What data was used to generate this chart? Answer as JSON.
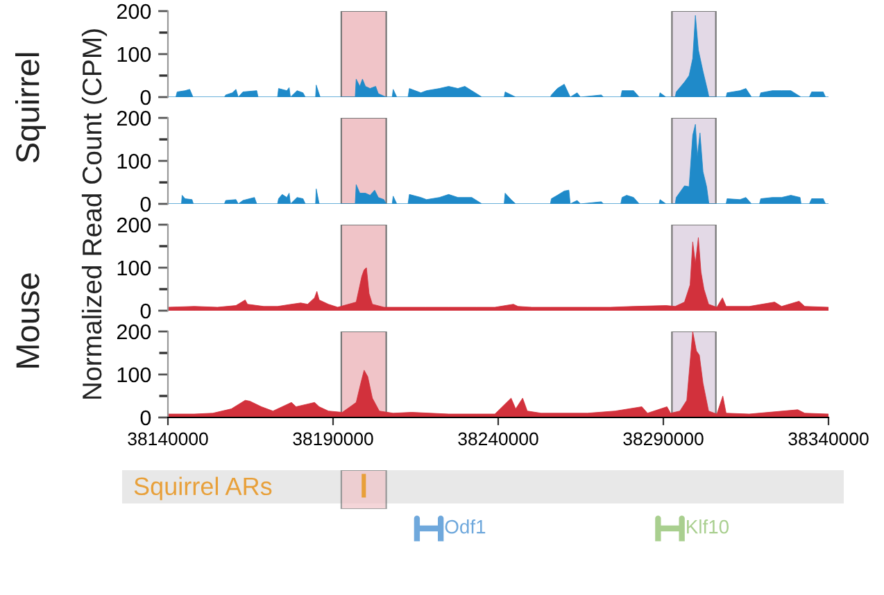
{
  "chart_data": [
    {
      "type": "area",
      "ylabel": "Squirrel",
      "tick_labels": "y",
      "xlim": [
        38140000,
        38340000
      ],
      "ylim": [
        0,
        200
      ],
      "yticks": [
        0,
        100,
        200
      ],
      "x": [
        38140000,
        38142400,
        38142800,
        38145200,
        38146600,
        38147600,
        38157100,
        38157500,
        38159500,
        38160600,
        38161300,
        38162700,
        38166900,
        38167300,
        38173200,
        38173500,
        38176000,
        38176700,
        38177100,
        38179100,
        38180900,
        38181600,
        38184700,
        38184900,
        38186100,
        38196700,
        38197000,
        38198100,
        38198900,
        38199800,
        38201200,
        38202900,
        38203700,
        38206100,
        38207900,
        38208200,
        38209300,
        38212700,
        38213100,
        38216600,
        38218300,
        38222200,
        38225000,
        38227800,
        38229900,
        38232000,
        38235100,
        38241800,
        38242100,
        38245300,
        38255800,
        38256100,
        38257900,
        38260000,
        38261800,
        38263900,
        38264900,
        38271200,
        38271900,
        38277100,
        38277500,
        38281000,
        38282700,
        38288700,
        38289000,
        38290800,
        38293600,
        38293900,
        38296400,
        38297800,
        38298900,
        38299700,
        38300600,
        38302000,
        38303400,
        38303800,
        38309000,
        38309300,
        38313200,
        38315000,
        38316700,
        38319100,
        38319500,
        38323000,
        38325800,
        38328600,
        38331700,
        38334200,
        38334900,
        38338400,
        38339100,
        38340000
      ],
      "series": [
        {
          "color": "#1f8ac9",
          "values": [
            0,
            0,
            12,
            15,
            18,
            0,
            0,
            5,
            10,
            18,
            0,
            12,
            15,
            0,
            0,
            20,
            15,
            22,
            0,
            15,
            10,
            0,
            0,
            28,
            0,
            0,
            42,
            25,
            42,
            25,
            20,
            25,
            8,
            0,
            0,
            18,
            0,
            0,
            20,
            10,
            15,
            20,
            25,
            20,
            25,
            15,
            0,
            0,
            12,
            0,
            0,
            5,
            20,
            30,
            0,
            10,
            0,
            5,
            0,
            0,
            15,
            15,
            0,
            0,
            10,
            0,
            0,
            12,
            35,
            50,
            90,
            190,
            110,
            60,
            15,
            0,
            0,
            10,
            15,
            20,
            0,
            0,
            10,
            15,
            15,
            15,
            0,
            0,
            12,
            12,
            0,
            0
          ]
        }
      ],
      "bands": [
        {
          "axis": "x",
          "from": 38192500,
          "to": 38206100,
          "color": "#f0c4c8"
        },
        {
          "axis": "x",
          "from": 38292600,
          "to": 38305900,
          "color": "#e3d9e6"
        }
      ]
    },
    {
      "type": "area",
      "ylabel": "Normalized Read Count (CPM)",
      "tick_labels": "y",
      "xlim": [
        38140000,
        38340000
      ],
      "ylim": [
        0,
        200
      ],
      "yticks": [
        0,
        100,
        200
      ],
      "x": [
        38140000,
        38144100,
        38144300,
        38145200,
        38147300,
        38147700,
        38157100,
        38157500,
        38160600,
        38161300,
        38162700,
        38166200,
        38166900,
        38173200,
        38173500,
        38174600,
        38176000,
        38176700,
        38177100,
        38179100,
        38180900,
        38181600,
        38184700,
        38184900,
        38185800,
        38196700,
        38197000,
        38198100,
        38199800,
        38201200,
        38202600,
        38203700,
        38205400,
        38206100,
        38207900,
        38208200,
        38209300,
        38212700,
        38213100,
        38216600,
        38218300,
        38222200,
        38225000,
        38227800,
        38229900,
        38232000,
        38235100,
        38241800,
        38242100,
        38243900,
        38245300,
        38255800,
        38256100,
        38257900,
        38260000,
        38261400,
        38261800,
        38263900,
        38264900,
        38271200,
        38271900,
        38277100,
        38277500,
        38278900,
        38281000,
        38282700,
        38288700,
        38289000,
        38290800,
        38293600,
        38293900,
        38296400,
        38297800,
        38298900,
        38299700,
        38300300,
        38301100,
        38302000,
        38303100,
        38303800,
        38309000,
        38309300,
        38313200,
        38315000,
        38316700,
        38319100,
        38319500,
        38323000,
        38325800,
        38328600,
        38331400,
        38331700,
        38334200,
        38334900,
        38338400,
        38339100,
        38340000
      ],
      "series": [
        {
          "color": "#1f8ac9",
          "values": [
            0,
            0,
            20,
            12,
            10,
            0,
            0,
            8,
            10,
            0,
            8,
            15,
            0,
            0,
            12,
            22,
            15,
            25,
            0,
            15,
            12,
            0,
            0,
            35,
            0,
            0,
            45,
            25,
            25,
            20,
            32,
            15,
            10,
            0,
            0,
            18,
            0,
            0,
            22,
            15,
            10,
            15,
            22,
            15,
            15,
            15,
            0,
            0,
            25,
            10,
            0,
            0,
            12,
            20,
            30,
            32,
            0,
            8,
            0,
            5,
            0,
            0,
            15,
            20,
            15,
            0,
            0,
            10,
            0,
            0,
            15,
            42,
            40,
            160,
            185,
            110,
            165,
            75,
            40,
            0,
            0,
            12,
            10,
            15,
            0,
            0,
            12,
            15,
            15,
            20,
            15,
            0,
            0,
            12,
            12,
            0,
            0
          ]
        }
      ],
      "bands": [
        {
          "axis": "x",
          "from": 38192500,
          "to": 38206100,
          "color": "#f0c4c8"
        },
        {
          "axis": "x",
          "from": 38292600,
          "to": 38305900,
          "color": "#e3d9e6"
        }
      ]
    },
    {
      "type": "area",
      "ylabel": "Mouse",
      "tick_labels": "y",
      "xlim": [
        38140000,
        38340000
      ],
      "ylim": [
        0,
        200
      ],
      "yticks": [
        0,
        100,
        200
      ],
      "x": [
        38140000,
        38148000,
        38155000,
        38160600,
        38163400,
        38164100,
        38169000,
        38173200,
        38177400,
        38180200,
        38182300,
        38184400,
        38185100,
        38185800,
        38188600,
        38191400,
        38197000,
        38198700,
        38199400,
        38200100,
        38200900,
        38201900,
        38205400,
        38211000,
        38218000,
        38225000,
        38233400,
        38239000,
        38244600,
        38246000,
        38250200,
        38255800,
        38267000,
        38274000,
        38281000,
        38290800,
        38293600,
        38296400,
        38298100,
        38298900,
        38299700,
        38300600,
        38301400,
        38302300,
        38303700,
        38306200,
        38307900,
        38309000,
        38316000,
        38323700,
        38325800,
        38331100,
        38332800,
        38340000
      ],
      "series": [
        {
          "color": "#d2313c",
          "values": [
            8,
            10,
            8,
            12,
            25,
            15,
            10,
            10,
            15,
            18,
            15,
            30,
            45,
            25,
            15,
            8,
            20,
            80,
            95,
            100,
            40,
            15,
            8,
            8,
            8,
            8,
            8,
            8,
            15,
            10,
            8,
            8,
            8,
            8,
            10,
            12,
            10,
            20,
            60,
            160,
            110,
            170,
            90,
            50,
            15,
            8,
            30,
            10,
            10,
            20,
            10,
            22,
            10,
            8
          ]
        }
      ],
      "bands": [
        {
          "axis": "x",
          "from": 38192500,
          "to": 38206100,
          "color": "#f0c4c8"
        },
        {
          "axis": "x",
          "from": 38292600,
          "to": 38305900,
          "color": "#e3d9e6"
        }
      ]
    },
    {
      "type": "area",
      "xlim": [
        38140000,
        38340000
      ],
      "xticks": [
        38140000,
        38190000,
        38240000,
        38290000,
        38340000
      ],
      "ylim": [
        0,
        200
      ],
      "yticks": [
        0,
        100,
        200
      ],
      "x": [
        38140000,
        38148000,
        38153600,
        38159200,
        38163400,
        38164800,
        38168300,
        38171800,
        38177400,
        38178800,
        38181600,
        38184400,
        38185800,
        38188600,
        38192800,
        38197000,
        38198400,
        38199400,
        38200500,
        38201900,
        38204000,
        38208200,
        38213800,
        38225000,
        38233400,
        38239000,
        38243900,
        38245300,
        38247400,
        38248800,
        38253000,
        38267000,
        38275400,
        38283500,
        38285200,
        38291100,
        38292200,
        38295000,
        38297100,
        38298900,
        38300000,
        38300900,
        38302000,
        38303700,
        38306200,
        38308000,
        38309000,
        38316000,
        38330700,
        38332800,
        38340000
      ],
      "series": [
        {
          "color": "#d2313c",
          "values": [
            8,
            8,
            10,
            20,
            40,
            38,
            25,
            15,
            35,
            25,
            30,
            35,
            25,
            15,
            12,
            35,
            80,
            110,
            95,
            45,
            15,
            10,
            12,
            8,
            8,
            8,
            45,
            20,
            45,
            15,
            10,
            10,
            15,
            25,
            10,
            25,
            10,
            15,
            40,
            200,
            155,
            145,
            80,
            15,
            8,
            50,
            10,
            8,
            18,
            10,
            8
          ]
        }
      ],
      "bands": [
        {
          "axis": "x",
          "from": 38192500,
          "to": 38206100,
          "color": "#f0c4c8"
        },
        {
          "axis": "x",
          "from": 38292600,
          "to": 38305900,
          "color": "#e3d9e6"
        }
      ],
      "annotations": [
        "Squirrel ARs",
        "Odf1",
        "Klf10"
      ]
    }
  ]
}
